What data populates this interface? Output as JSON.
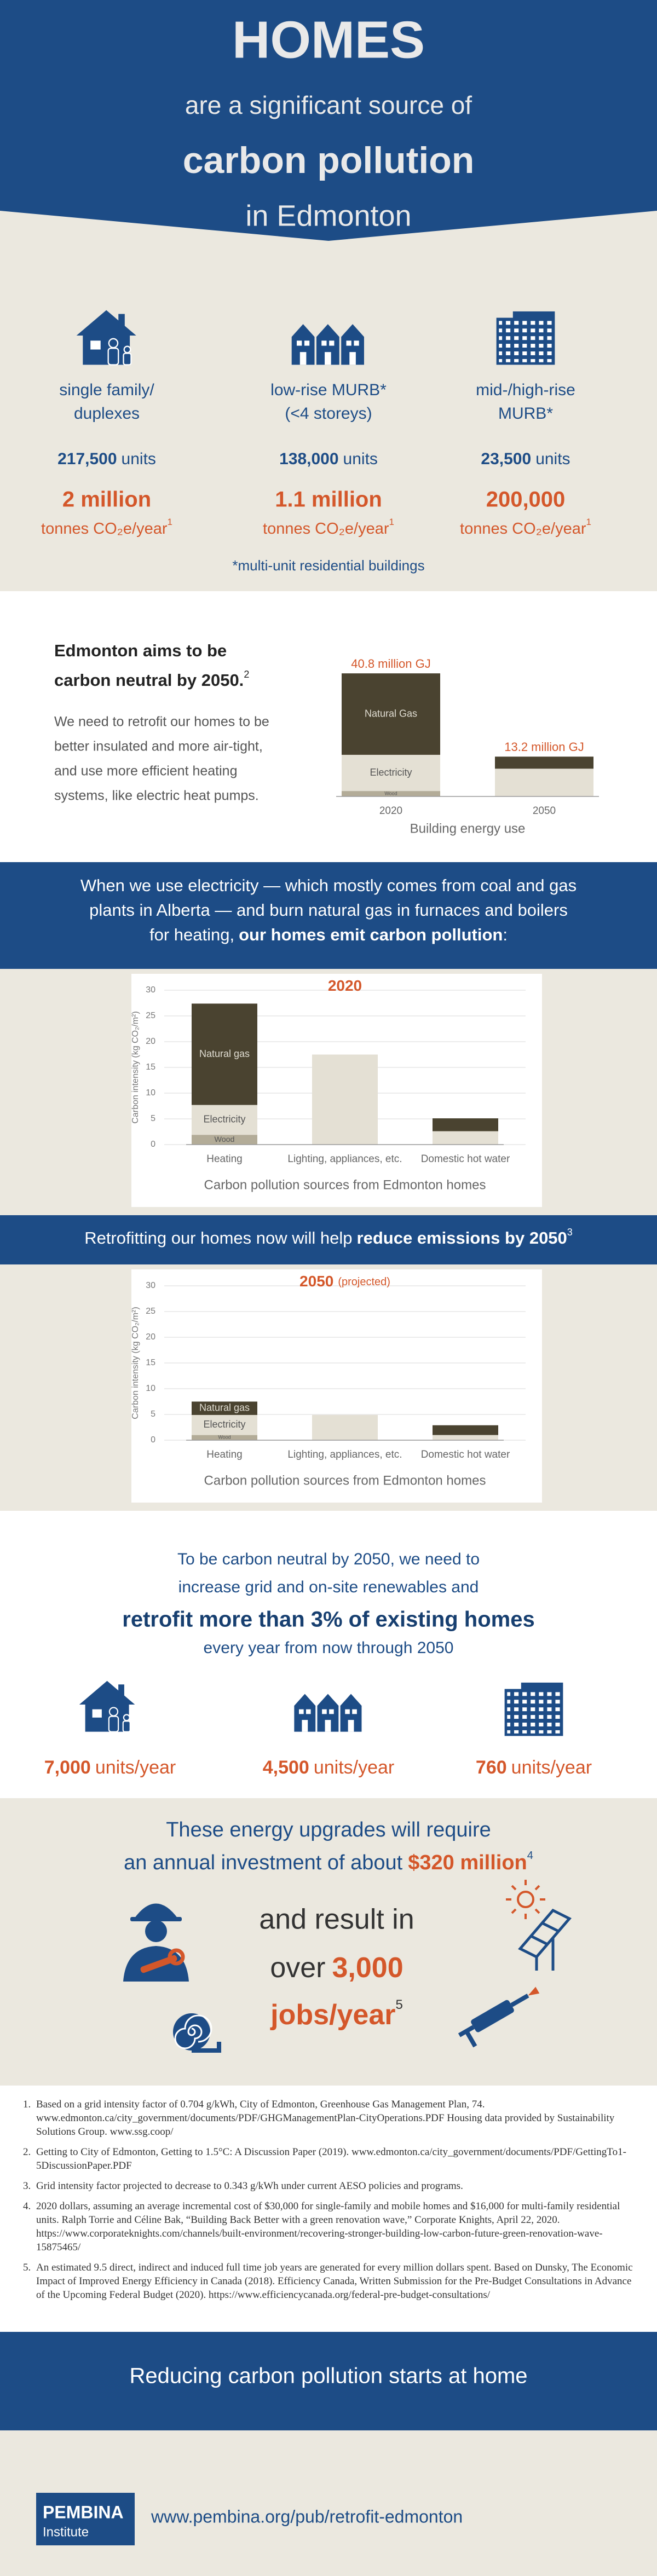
{
  "header": {
    "line1": "HOMES",
    "line2": "are a significant source of",
    "line3": "carbon pollution",
    "line4": "in Edmonton"
  },
  "housing": {
    "types": [
      {
        "label_lines": [
          "single family/",
          "duplexes"
        ],
        "count": "217,500",
        "count_unit": "units",
        "emissions": "2 million",
        "emissions_unit": "tonnes CO₂e/year",
        "note": "1"
      },
      {
        "label_lines": [
          "low-rise MURB*",
          "(<4 storeys)"
        ],
        "count": "138,000",
        "count_unit": "units",
        "emissions": "1.1 million",
        "emissions_unit": "tonnes CO₂e/year",
        "note": "1"
      },
      {
        "label_lines": [
          "mid-/high-rise",
          "MURB*"
        ],
        "count": "23,500",
        "count_unit": "units",
        "emissions": "200,000",
        "emissions_unit": "tonnes CO₂e/year",
        "note": "1"
      }
    ],
    "footnote": "*multi-unit residential buildings"
  },
  "aim": {
    "heading_lines": [
      "Edmonton aims to be",
      "carbon neutral by 2050."
    ],
    "heading_note": "2",
    "body_lines": [
      "We need to retrofit our homes to be",
      "better insulated and more air-tight,",
      "and use more efficient heating",
      "systems, like electric heat pumps."
    ]
  },
  "intro": {
    "lines": [
      "When we use electricity — which mostly comes from coal and gas",
      "plants in Alberta — and burn natural gas in furnaces and boilers",
      "for heating,"
    ],
    "bold": "our homes emit carbon pollution",
    "end": ":"
  },
  "retrofit_banner": {
    "text": "Retrofitting our homes now will help",
    "bold": "reduce emissions by 2050",
    "note": "3"
  },
  "target": {
    "lines": [
      "To be carbon neutral by 2050, we need to",
      "increase grid and on-site renewables and"
    ],
    "bold": "retrofit more than 3% of existing homes",
    "last": "every year from now through 2050",
    "rates": [
      {
        "count": "7,000",
        "unit": "units/year"
      },
      {
        "count": "4,500",
        "unit": "units/year"
      },
      {
        "count": "760",
        "unit": "units/year"
      }
    ]
  },
  "investment": {
    "line1": "These energy upgrades will require",
    "line2": "an annual investment of about",
    "amount": "$320 million",
    "note": "4",
    "jobs_line1": "and result in",
    "jobs_line2": "over",
    "jobs": "3,000",
    "jobs_unit": "jobs/year",
    "jobs_note": "5"
  },
  "footnotes": [
    {
      "number": "1.",
      "text": "Based on a grid intensity factor of 0.704 g/kWh, City of Edmonton, Greenhouse Gas Management Plan, 74. www.edmonton.ca/city_government/documents/PDF/GHGManagementPlan-CityOperations.PDF Housing data provided by Sustainability Solutions Group. www.ssg.coop/"
    },
    {
      "number": "2.",
      "text": "Getting to City of Edmonton, Getting to 1.5°C: A Discussion Paper (2019). www.edmonton.ca/city_government/documents/PDF/GettingTo1-5DiscussionPaper.PDF"
    },
    {
      "number": "3.",
      "text": "Grid intensity factor projected to decrease to 0.343 g/kWh under current AESO policies and programs."
    },
    {
      "number": "4.",
      "text": "2020 dollars, assuming an average incremental cost of $30,000 for single-family and mobile homes and $16,000 for multi-family residential units. Ralph Torrie and Céline Bak, “Building Back Better with a green renovation wave,” Corporate Knights, April 22, 2020. https://www.corporateknights.com/channels/built-environment/recovering-stronger-building-low-carbon-future-green-renovation-wave-15875465/"
    },
    {
      "number": "5.",
      "text": "An estimated 9.5 direct, indirect and induced full time job years are generated for every million dollars spent. Based on Dunsky, The Economic Impact of Improved Energy Efficiency in Canada (2018). Efficiency Canada, Written Submission for the Pre-Budget Consultations in Advance of the Upcoming Federal Budget (2020). https://www.efficiencycanada.org/federal-pre-budget-consultations/"
    }
  ],
  "footer": {
    "tagline": "Reducing carbon pollution starts at home",
    "logo_line1": "PEMBINA",
    "logo_line2": "Institute",
    "url": "www.pembina.org/pub/retrofit-edmonton"
  },
  "chart_data": [
    {
      "type": "bar",
      "stacked": true,
      "categories": [
        "2020",
        "2050"
      ],
      "series": [
        {
          "name": "Wood",
          "color": "#b3ac98",
          "values": [
            1.8,
            0
          ]
        },
        {
          "name": "Electricity",
          "color": "#e4e0d4",
          "values": [
            12,
            9.2
          ]
        },
        {
          "name": "Natural Gas",
          "color": "#4a4330",
          "values": [
            27,
            4
          ]
        }
      ],
      "totals": [
        40.8,
        13.2
      ],
      "total_labels": [
        "40.8 million GJ",
        "13.2 million GJ"
      ],
      "xlabel": "Building energy use",
      "ylim": [
        0,
        45
      ]
    },
    {
      "type": "bar",
      "stacked": true,
      "title": "2020",
      "ylabel": "Carbon intensity (kg CO₂/m²)",
      "categories": [
        "Heating",
        "Lighting, appliances, etc.",
        "Domestic hot water"
      ],
      "series": [
        {
          "name": "Wood",
          "color": "#b3ac98",
          "values": [
            1.9,
            0,
            0
          ]
        },
        {
          "name": "Electricity",
          "color": "#e4e0d4",
          "values": [
            5.8,
            17.5,
            2.6
          ]
        },
        {
          "name": "Natural gas",
          "color": "#4a4330",
          "values": [
            19.7,
            0,
            2.5
          ]
        }
      ],
      "xlabel": "Carbon pollution sources from Edmonton homes",
      "ylim": [
        0,
        30
      ],
      "yticks": [
        0,
        5,
        10,
        15,
        20,
        25,
        30
      ],
      "grid": true
    },
    {
      "type": "bar",
      "stacked": true,
      "title": "2050",
      "title_note": "(projected)",
      "ylabel": "Carbon intensity (kg CO₂/m²)",
      "categories": [
        "Heating",
        "Lighting, appliances, etc.",
        "Domestic hot water"
      ],
      "series": [
        {
          "name": "Wood",
          "color": "#b3ac98",
          "values": [
            1.0,
            0,
            0
          ]
        },
        {
          "name": "Electricity",
          "color": "#e4e0d4",
          "values": [
            3.9,
            4.9,
            1.0
          ]
        },
        {
          "name": "Natural gas",
          "color": "#4a4330",
          "values": [
            2.6,
            0,
            1.9
          ]
        }
      ],
      "xlabel": "Carbon pollution sources from Edmonton homes",
      "ylim": [
        0,
        30
      ],
      "yticks": [
        0,
        5,
        10,
        15,
        20,
        25,
        30
      ],
      "grid": true
    }
  ]
}
